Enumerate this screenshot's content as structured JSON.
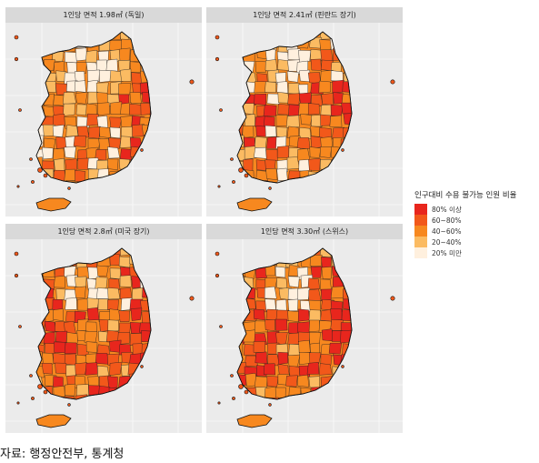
{
  "panels": [
    {
      "title": "1인당 면적 1.98㎡ (독일)"
    },
    {
      "title": "1인당 면적 2.41㎡ (핀란드 장기)"
    },
    {
      "title": "1인당 면적 2.8㎡ (미국 장기)"
    },
    {
      "title": "1인당 면적 3.30㎡ (스위스)"
    }
  ],
  "legend": {
    "title": "인구대비 수용 불가능 인원 비율",
    "items": [
      {
        "label": "80% 이상",
        "color": "#e8261d"
      },
      {
        "label": "60~80%",
        "color": "#f2581a"
      },
      {
        "label": "40~60%",
        "color": "#f7881f"
      },
      {
        "label": "20~40%",
        "color": "#fbbb62"
      },
      {
        "label": "20% 미만",
        "color": "#fff0de"
      }
    ]
  },
  "source": "자료: 행정안전부, 통계청"
}
